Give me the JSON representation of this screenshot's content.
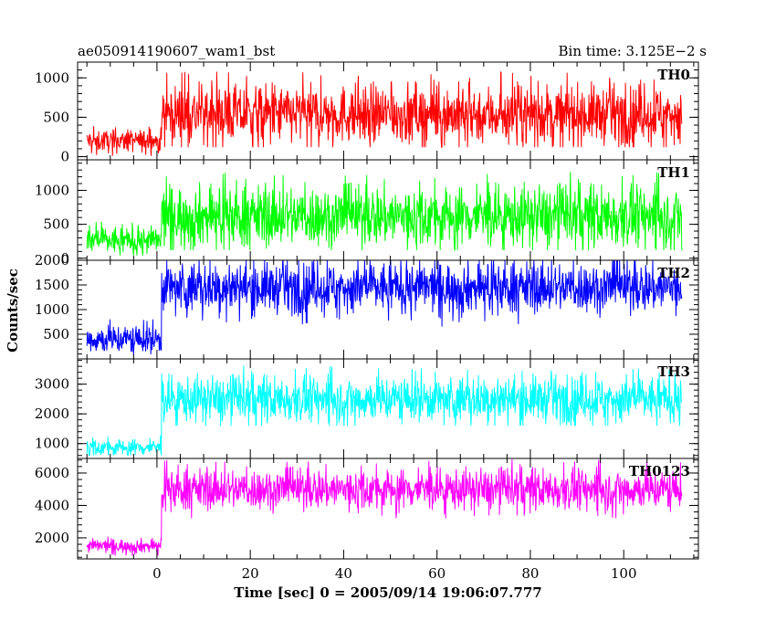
{
  "header": {
    "title": "ae050914190607_wam1_bst",
    "bin_time": "Bin time: 3.125E−2 s"
  },
  "chart_data": {
    "type": "line",
    "title": "ae050914190607_wam1_bst",
    "xlabel": "Time [sec] 0 = 2005/09/14 19:06:07.777",
    "ylabel": "Counts/sec",
    "xlim": [
      -17,
      116
    ],
    "x_ticks": [
      0,
      20,
      40,
      60,
      80,
      100
    ],
    "trigger_time": 1.0,
    "data_start": -15,
    "data_end": 112.5,
    "bin_time": 0.03125,
    "panels": [
      {
        "name": "TH0",
        "color": "#ff0000",
        "ylim": [
          -40,
          1200
        ],
        "y_ticks": [
          0,
          500,
          1000
        ],
        "pre_mean": 200,
        "pre_min": 10,
        "pre_max": 430,
        "post_mean": 540,
        "post_min": 120,
        "post_max": 1200
      },
      {
        "name": "TH1",
        "color": "#00ff00",
        "ylim": [
          -30,
          1450
        ],
        "y_ticks": [
          0,
          500,
          1000
        ],
        "pre_mean": 260,
        "pre_min": 40,
        "pre_max": 650,
        "post_mean": 620,
        "post_min": 120,
        "post_max": 1430
      },
      {
        "name": "TH2",
        "color": "#0000ff",
        "ylim": [
          0,
          2000
        ],
        "y_ticks": [
          500,
          1000,
          1500,
          2000
        ],
        "pre_mean": 400,
        "pre_min": 80,
        "pre_max": 950,
        "post_mean": 1450,
        "post_min": 500,
        "post_max": 2000
      },
      {
        "name": "TH3",
        "color": "#00ffff",
        "ylim": [
          500,
          3850
        ],
        "y_ticks": [
          1000,
          2000,
          3000
        ],
        "pre_mean": 870,
        "pre_min": 600,
        "pre_max": 1450,
        "post_mean": 2500,
        "post_min": 1600,
        "post_max": 3850
      },
      {
        "name": "TH0123",
        "color": "#ff00ff",
        "ylim": [
          700,
          6900
        ],
        "y_ticks": [
          2000,
          4000,
          6000
        ],
        "pre_mean": 1500,
        "pre_min": 900,
        "pre_max": 2200,
        "post_mean": 5000,
        "post_min": 3200,
        "post_max": 6900
      }
    ]
  }
}
